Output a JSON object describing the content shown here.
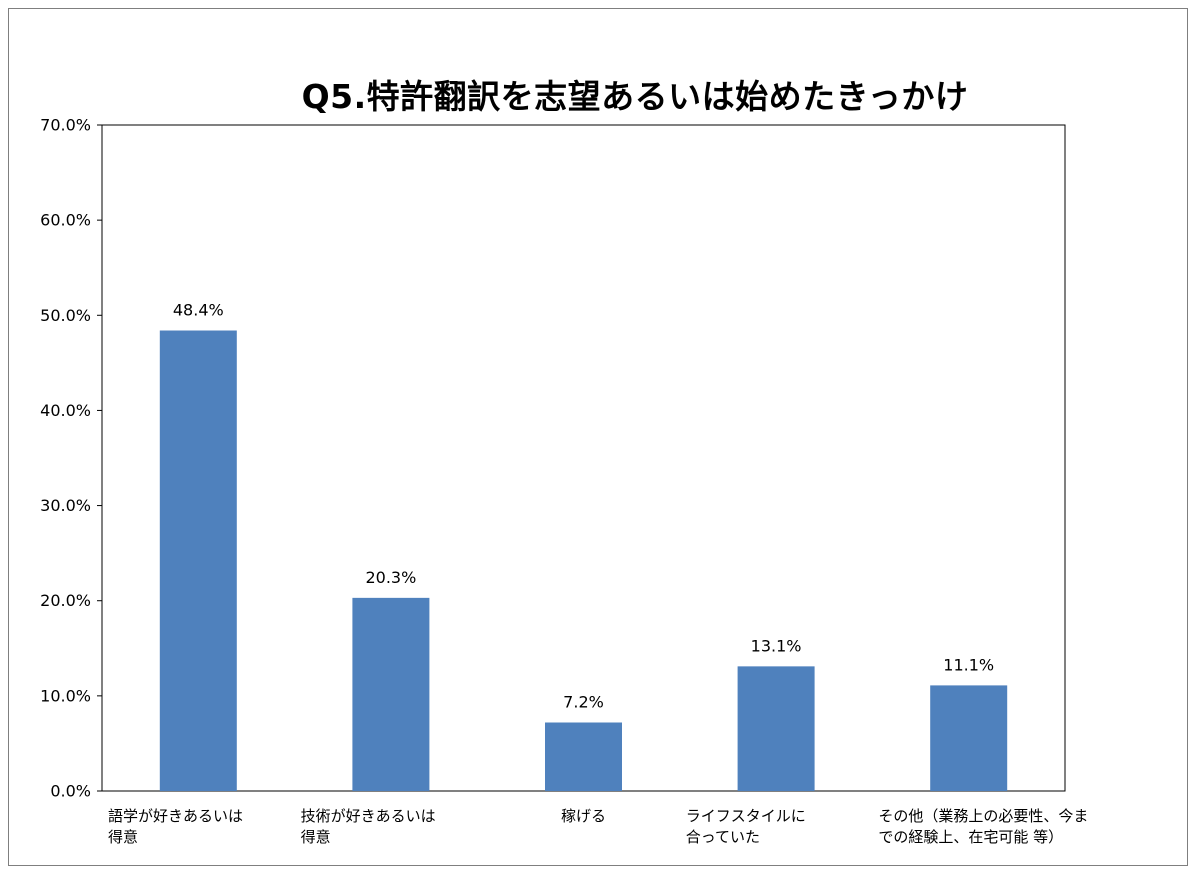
{
  "chart_data": {
    "type": "bar",
    "title": "Q5.特許翻訳を志望あるいは始めたきっかけ",
    "categories": [
      [
        "語学が好きあるいは",
        "得意"
      ],
      [
        "技術が好きあるいは",
        "得意"
      ],
      [
        "稼げる"
      ],
      [
        "ライフスタイルに",
        "合っていた"
      ],
      [
        "その他（業務上の必要性、今ま",
        "での経験上、在宅可能 等）"
      ]
    ],
    "values": [
      48.4,
      20.3,
      7.2,
      13.1,
      11.1
    ],
    "data_labels": [
      "48.4%",
      "20.3%",
      "7.2%",
      "13.1%",
      "11.1%"
    ],
    "y_tick_labels": [
      "0.0%",
      "10.0%",
      "20.0%",
      "30.0%",
      "40.0%",
      "50.0%",
      "60.0%",
      "70.0%"
    ],
    "ylim": [
      0,
      70
    ],
    "grid": false,
    "legend": "none",
    "bar_color": "#4f81bd"
  }
}
